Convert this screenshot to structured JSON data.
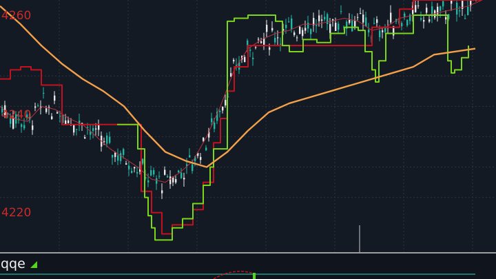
{
  "chart_data": {
    "type": "candlestick",
    "title": "",
    "ylabel": "",
    "xlabel": "",
    "ylim": [
      4202,
      4285
    ],
    "y_ticks": [
      4260,
      4240,
      4220
    ],
    "grid": true,
    "colors": {
      "background": "#141a24",
      "up_candle": "#e8e8e8",
      "down_candle": "#26b5a3",
      "ma_long": "#f2a049",
      "ma_short": "#b7333e",
      "band_bear": "#c2121f",
      "band_bull": "#7bd61c",
      "grid": "#2b3442",
      "tick_label": "#c92a2a"
    },
    "series": [
      {
        "kind": "ma_long",
        "x": [
          0,
          30,
          60,
          90,
          120,
          150,
          180,
          210,
          240,
          270,
          300,
          330,
          360,
          390,
          420,
          450,
          480,
          510,
          540,
          570,
          600,
          630,
          660,
          690
        ],
        "y": [
          4283,
          4277,
          4270,
          4264,
          4259,
          4255,
          4250,
          4242,
          4235,
          4232,
          4230,
          4235,
          4242,
          4248,
          4251,
          4253,
          4255,
          4257,
          4259,
          4261,
          4263,
          4267,
          4268,
          4269
        ]
      },
      {
        "kind": "ma_short",
        "x": [
          0,
          20,
          40,
          60,
          80,
          100,
          120,
          140,
          160,
          180,
          200,
          220,
          240,
          260,
          280,
          300,
          320,
          340,
          360,
          380,
          400,
          420,
          440,
          460,
          480,
          500,
          520,
          540,
          560,
          580,
          600,
          620,
          640,
          660,
          680,
          700
        ],
        "y": [
          4250,
          4246,
          4245,
          4250,
          4249,
          4246,
          4244,
          4240,
          4236,
          4233,
          4230,
          4226,
          4225,
          4228,
          4232,
          4240,
          4250,
          4262,
          4269,
          4272,
          4274,
          4275,
          4277,
          4277,
          4278,
          4279,
          4278,
          4275,
          4276,
          4279,
          4280,
          4280,
          4281,
          4282,
          4283,
          4285
        ]
      },
      {
        "kind": "band_bear",
        "x": [
          0,
          15,
          30,
          45,
          60,
          90,
          120,
          150,
          170,
          190,
          205,
          220,
          235,
          250,
          265,
          280,
          295,
          310,
          320,
          330,
          340,
          360,
          380,
          400,
          420,
          440,
          460,
          480,
          500,
          520,
          540,
          560,
          580,
          600,
          620,
          640,
          660,
          680,
          700
        ],
        "y": [
          4259,
          4262,
          4263,
          4262,
          4257,
          4244,
          4244,
          4244,
          4244,
          4244,
          4222,
          4215,
          4208,
          4211,
          4211,
          4216,
          4225,
          4238,
          4246,
          4255,
          4263,
          4270,
          4270,
          4270,
          4270,
          4270,
          4270,
          4270,
          4270,
          4270,
          4276,
          4276,
          4282,
          4285,
          4285,
          4285,
          4285,
          4285,
          4285
        ]
      },
      {
        "kind": "band_bull",
        "x": [
          170,
          190,
          200,
          210,
          215,
          220,
          225,
          235,
          250,
          265,
          280,
          295,
          305,
          310,
          330,
          340,
          350,
          360,
          380,
          400,
          410,
          420,
          430,
          440,
          460,
          480,
          500,
          520,
          530,
          540,
          545,
          550,
          560,
          600,
          640,
          650,
          655,
          660,
          670,
          680
        ],
        "y": [
          4244,
          4244,
          4236,
          4220,
          4214,
          4210,
          4206,
          4206,
          4210,
          4213,
          4218,
          4224,
          4230,
          4236,
          4278,
          4279,
          4279,
          4280,
          4280,
          4278,
          4270,
          4268,
          4268,
          4272,
          4271,
          4274,
          4276,
          4275,
          4268,
          4262,
          4258,
          4265,
          4274,
          4280,
          4280,
          4265,
          4261,
          4262,
          4266,
          4270
        ]
      }
    ]
  },
  "y_axis_labels": [
    "4260",
    "4240",
    "4220"
  ],
  "indicator": {
    "label": "qqe",
    "arrow_icon": "triangle-up-icon"
  }
}
